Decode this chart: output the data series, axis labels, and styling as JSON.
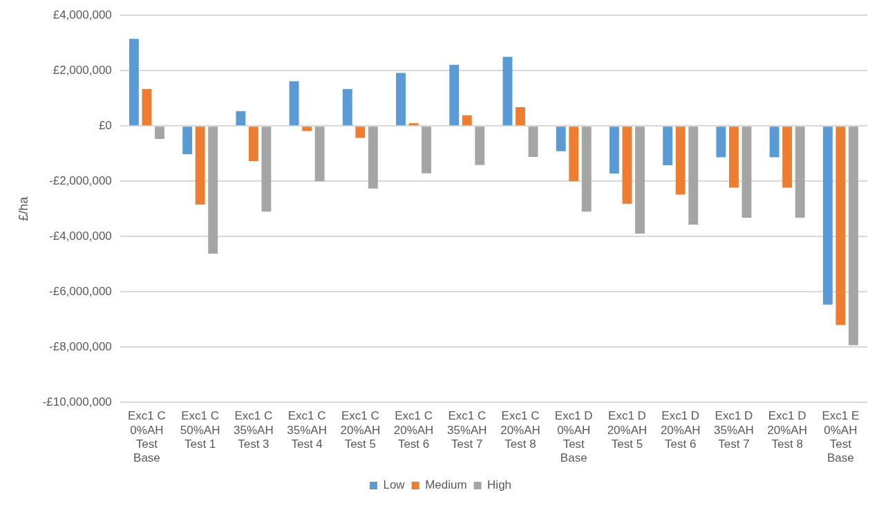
{
  "chart_data": {
    "type": "bar",
    "ylabel": "£/ha",
    "categories": [
      "Exc1 C 0%AH Test Base",
      "Exc1 C 50%AH Test 1",
      "Exc1 C 35%AH Test 3",
      "Exc1 C 35%AH Test 4",
      "Exc1 C 20%AH Test 5",
      "Exc1 C 20%AH Test 6",
      "Exc1 C 35%AH Test 7",
      "Exc1 C 20%AH Test 8",
      "Exc1 D 0%AH Test Base",
      "Exc1 D 20%AH Test 5",
      "Exc1 D 20%AH Test 6",
      "Exc1 D 35%AH Test 7",
      "Exc1 D 20%AH Test 8",
      "Exc1 E 0%AH Test Base"
    ],
    "series": [
      {
        "name": "Low",
        "color": "#5b9bd5",
        "values": [
          3150000,
          -1020000,
          540000,
          1620000,
          1340000,
          1920000,
          2210000,
          2500000,
          -910000,
          -1720000,
          -1420000,
          -1130000,
          -1130000,
          -6460000
        ]
      },
      {
        "name": "Medium",
        "color": "#ed7d31",
        "values": [
          1340000,
          -2840000,
          -1270000,
          -180000,
          -430000,
          100000,
          390000,
          680000,
          -2000000,
          -2810000,
          -2480000,
          -2230000,
          -2230000,
          -7200000
        ]
      },
      {
        "name": "High",
        "color": "#a5a5a5",
        "values": [
          -470000,
          -4620000,
          -3100000,
          -2000000,
          -2260000,
          -1710000,
          -1410000,
          -1120000,
          -3100000,
          -3890000,
          -3570000,
          -3320000,
          -3320000,
          -7930000
        ]
      }
    ],
    "ylim": [
      -10000000,
      4000000
    ],
    "yticks": [
      {
        "value": -10000000,
        "label": "-£10,000,000"
      },
      {
        "value": -8000000,
        "label": "-£8,000,000"
      },
      {
        "value": -6000000,
        "label": "-£6,000,000"
      },
      {
        "value": -4000000,
        "label": "-£4,000,000"
      },
      {
        "value": -2000000,
        "label": "-£2,000,000"
      },
      {
        "value": 0,
        "label": "£0"
      },
      {
        "value": 2000000,
        "label": "£2,000,000"
      },
      {
        "value": 4000000,
        "label": "£4,000,000"
      }
    ],
    "grid": "y",
    "legend": "bottom"
  }
}
